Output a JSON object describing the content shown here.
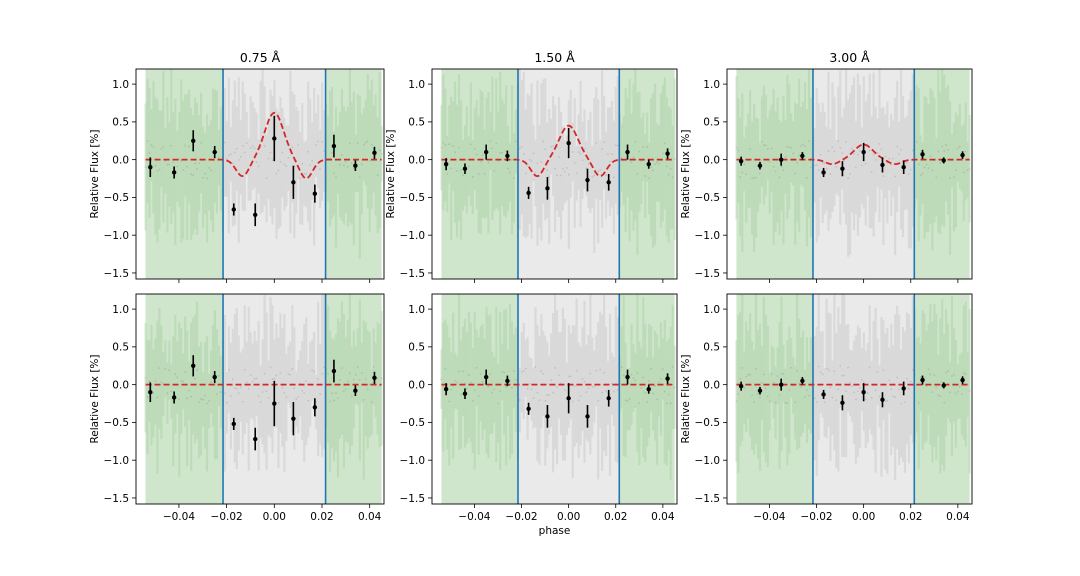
{
  "figure": {
    "xlabel": "phase",
    "ylabel": "Relative Flux [%]",
    "colors": {
      "model": "#d62728",
      "points": "#000000",
      "out_of_transit_band": "#cfe6cc",
      "in_transit_band": "#eaeaea",
      "contact_lines": "#1f77b4",
      "raw_green": "#8fbf88",
      "raw_gray": "#b0b0b0"
    }
  },
  "chart_data": [
    {
      "type": "scatter",
      "title": "0.75 Å",
      "ylabel": "Relative Flux [%]",
      "xlabel": "",
      "xlim": [
        -0.058,
        0.046
      ],
      "ylim": [
        -1.58,
        1.2
      ],
      "xticks": [
        "−0.04",
        "−0.02",
        "0.00",
        "0.02",
        "0.04"
      ],
      "yticks": [
        "1.0",
        "0.5",
        "0.0",
        "−0.5",
        "−1.0",
        "−1.5"
      ],
      "contacts": [
        -0.0215,
        0.0215
      ],
      "band": [
        -0.054,
        0.045
      ],
      "points": {
        "x": [
          -0.052,
          -0.042,
          -0.034,
          -0.025,
          -0.017,
          -0.008,
          0.0,
          0.008,
          0.017,
          0.025,
          0.034,
          0.042
        ],
        "y": [
          -0.1,
          -0.17,
          0.25,
          0.1,
          -0.66,
          -0.73,
          0.28,
          -0.3,
          -0.45,
          0.18,
          -0.08,
          0.09
        ],
        "err": [
          0.13,
          0.08,
          0.14,
          0.08,
          0.08,
          0.15,
          0.3,
          0.22,
          0.12,
          0.15,
          0.07,
          0.08
        ]
      },
      "model": {
        "style": "dashed",
        "in_transit": "wave",
        "amplitude": [
          0.62,
          -0.22,
          -0.25
        ]
      }
    },
    {
      "type": "scatter",
      "title": "1.50 Å",
      "ylabel": "Relative Flux [%]",
      "xlabel": "",
      "xlim": [
        -0.058,
        0.046
      ],
      "ylim": [
        -1.58,
        1.2
      ],
      "xticks": [
        "−0.04",
        "−0.02",
        "0.00",
        "0.02",
        "0.04"
      ],
      "yticks": [
        "1.0",
        "0.5",
        "0.0",
        "−0.5",
        "−1.0",
        "−1.5"
      ],
      "contacts": [
        -0.0215,
        0.0215
      ],
      "band": [
        -0.054,
        0.045
      ],
      "points": {
        "x": [
          -0.052,
          -0.044,
          -0.035,
          -0.026,
          -0.017,
          -0.009,
          0.0,
          0.008,
          0.017,
          0.025,
          0.034,
          0.042
        ],
        "y": [
          -0.06,
          -0.12,
          0.1,
          0.05,
          -0.44,
          -0.38,
          0.22,
          -0.27,
          -0.3,
          0.1,
          -0.06,
          0.08
        ],
        "err": [
          0.08,
          0.07,
          0.1,
          0.07,
          0.08,
          0.15,
          0.2,
          0.15,
          0.11,
          0.1,
          0.06,
          0.07
        ]
      },
      "model": {
        "style": "dashed",
        "in_transit": "wave",
        "amplitude": [
          0.45,
          -0.22,
          -0.22
        ]
      }
    },
    {
      "type": "scatter",
      "title": "3.00 Å",
      "ylabel": "Relative Flux [%]",
      "xlabel": "",
      "xlim": [
        -0.058,
        0.046
      ],
      "ylim": [
        -1.58,
        1.2
      ],
      "xticks": [
        "−0.04",
        "−0.02",
        "0.00",
        "0.02",
        "0.04"
      ],
      "yticks": [
        "1.0",
        "0.5",
        "0.0",
        "−0.5",
        "−1.0",
        "−1.5"
      ],
      "contacts": [
        -0.0215,
        0.0215
      ],
      "band": [
        -0.054,
        0.045
      ],
      "points": {
        "x": [
          -0.052,
          -0.044,
          -0.035,
          -0.026,
          -0.017,
          -0.009,
          0.0,
          0.008,
          0.017,
          0.025,
          0.034,
          0.042
        ],
        "y": [
          -0.02,
          -0.08,
          0.0,
          0.05,
          -0.17,
          -0.12,
          0.1,
          -0.07,
          -0.1,
          0.07,
          -0.01,
          0.06
        ],
        "err": [
          0.06,
          0.05,
          0.08,
          0.05,
          0.06,
          0.1,
          0.12,
          0.1,
          0.09,
          0.06,
          0.04,
          0.05
        ]
      },
      "model": {
        "style": "dashed",
        "in_transit": "wave",
        "amplitude": [
          0.2,
          -0.06,
          -0.06
        ]
      }
    },
    {
      "type": "scatter",
      "title": "",
      "ylabel": "Relative Flux [%]",
      "xlabel": "",
      "xlim": [
        -0.058,
        0.046
      ],
      "ylim": [
        -1.58,
        1.2
      ],
      "xticks": [
        "−0.04",
        "−0.02",
        "0.00",
        "0.02",
        "0.04"
      ],
      "yticks": [
        "1.0",
        "0.5",
        "0.0",
        "−0.5",
        "−1.0",
        "−1.5"
      ],
      "contacts": [
        -0.0215,
        0.0215
      ],
      "band": [
        -0.054,
        0.045
      ],
      "points": {
        "x": [
          -0.052,
          -0.042,
          -0.034,
          -0.025,
          -0.017,
          -0.008,
          0.0,
          0.008,
          0.017,
          0.025,
          0.034,
          0.042
        ],
        "y": [
          -0.1,
          -0.17,
          0.25,
          0.1,
          -0.52,
          -0.72,
          -0.25,
          -0.45,
          -0.3,
          0.18,
          -0.08,
          0.09
        ],
        "err": [
          0.13,
          0.08,
          0.14,
          0.08,
          0.08,
          0.15,
          0.3,
          0.22,
          0.12,
          0.15,
          0.07,
          0.08
        ]
      },
      "model": {
        "style": "dashed",
        "in_transit": "flat",
        "amplitude": [
          0,
          0,
          0
        ]
      }
    },
    {
      "type": "scatter",
      "title": "",
      "ylabel": "",
      "xlabel": "phase",
      "xlim": [
        -0.058,
        0.046
      ],
      "ylim": [
        -1.58,
        1.2
      ],
      "xticks": [
        "−0.04",
        "−0.02",
        "0.00",
        "0.02",
        "0.04"
      ],
      "yticks": [
        "1.0",
        "0.5",
        "0.0",
        "−0.5",
        "−1.0",
        "−1.5"
      ],
      "contacts": [
        -0.0215,
        0.0215
      ],
      "band": [
        -0.054,
        0.045
      ],
      "points": {
        "x": [
          -0.052,
          -0.044,
          -0.035,
          -0.026,
          -0.017,
          -0.009,
          0.0,
          0.008,
          0.017,
          0.025,
          0.034,
          0.042
        ],
        "y": [
          -0.06,
          -0.12,
          0.1,
          0.05,
          -0.32,
          -0.42,
          -0.18,
          -0.42,
          -0.18,
          0.1,
          -0.06,
          0.08
        ],
        "err": [
          0.08,
          0.07,
          0.1,
          0.07,
          0.08,
          0.15,
          0.2,
          0.15,
          0.11,
          0.1,
          0.06,
          0.07
        ]
      },
      "model": {
        "style": "dashed",
        "in_transit": "flat",
        "amplitude": [
          0,
          0,
          0
        ]
      }
    },
    {
      "type": "scatter",
      "title": "",
      "ylabel": "Relative Flux [%]",
      "xlabel": "",
      "xlim": [
        -0.058,
        0.046
      ],
      "ylim": [
        -1.58,
        1.2
      ],
      "xticks": [
        "−0.04",
        "−0.02",
        "0.00",
        "0.02",
        "0.04"
      ],
      "yticks": [
        "1.0",
        "0.5",
        "0.0",
        "−0.5",
        "−1.0",
        "−1.5"
      ],
      "contacts": [
        -0.0215,
        0.0215
      ],
      "band": [
        -0.054,
        0.045
      ],
      "points": {
        "x": [
          -0.052,
          -0.044,
          -0.035,
          -0.026,
          -0.017,
          -0.009,
          0.0,
          0.008,
          0.017,
          0.025,
          0.034,
          0.042
        ],
        "y": [
          -0.02,
          -0.08,
          0.0,
          0.05,
          -0.13,
          -0.24,
          -0.1,
          -0.2,
          -0.05,
          0.06,
          -0.01,
          0.06
        ],
        "err": [
          0.06,
          0.05,
          0.08,
          0.05,
          0.06,
          0.1,
          0.12,
          0.1,
          0.09,
          0.06,
          0.04,
          0.05
        ]
      },
      "model": {
        "style": "dashed",
        "in_transit": "flat",
        "amplitude": [
          0,
          0,
          0
        ]
      }
    }
  ]
}
